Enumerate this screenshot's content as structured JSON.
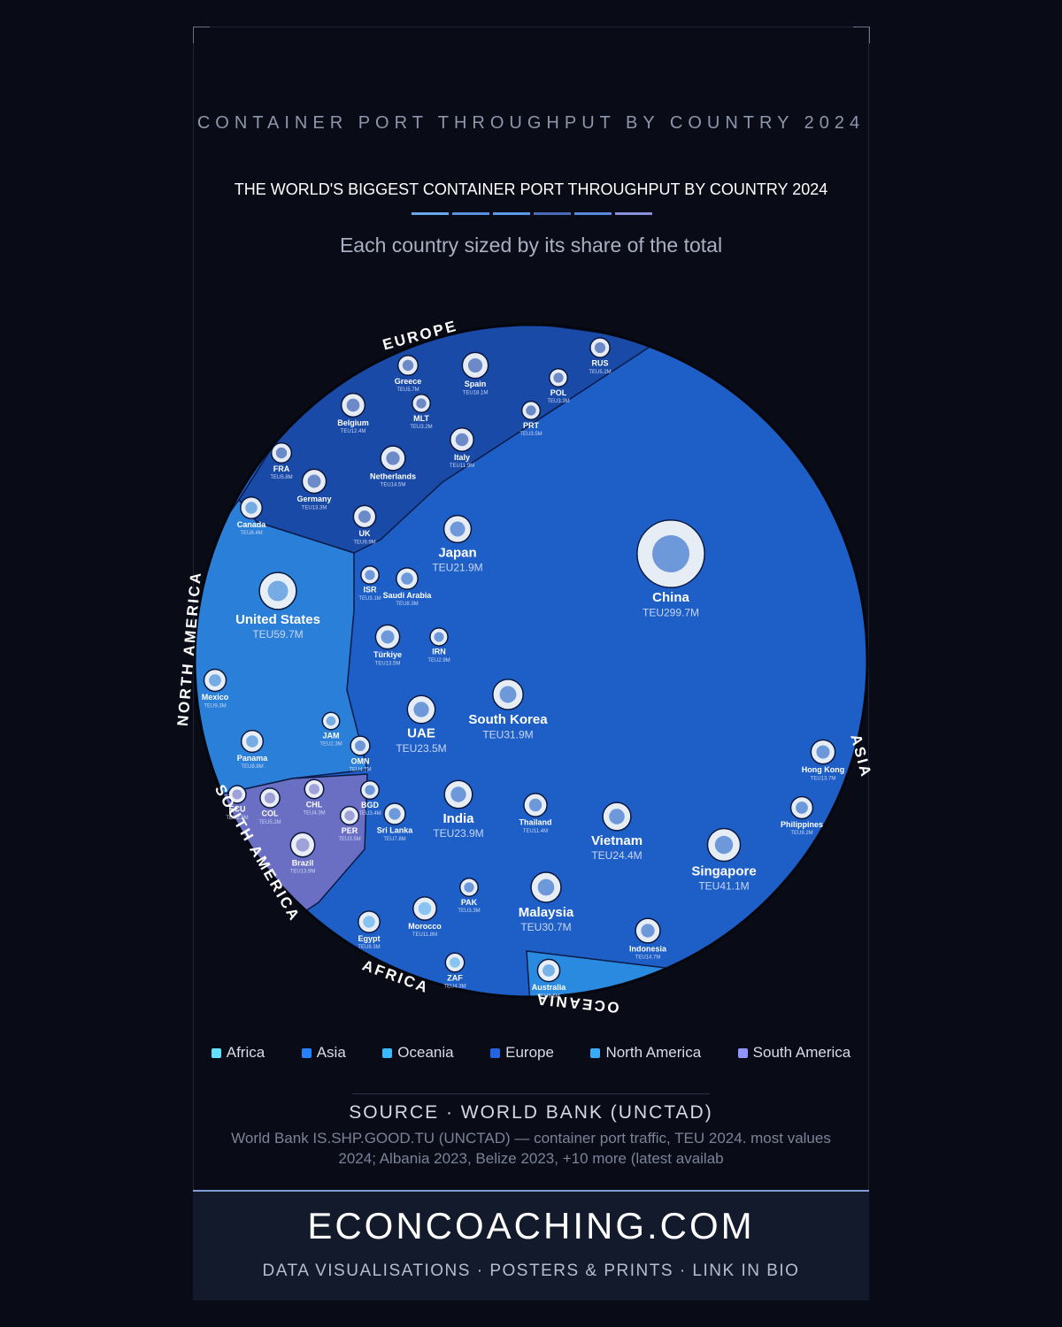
{
  "chart_data": {
    "type": "voronoi-treemap",
    "kicker": "CONTAINER PORT THROUGHPUT BY COUNTRY 2024",
    "title": "THE WORLD'S BIGGEST CONTAINER PORT THROUGHPUT BY COUNTRY 2024",
    "subtitle": "Each country sized by its share of the total",
    "series": [
      {
        "name": "Africa",
        "ring_label": "AFRICA",
        "color": "#4aa6ee",
        "categories": [
          "Morocco",
          "Egypt",
          "ZAF"
        ],
        "values": [
          11.8,
          8.3,
          4.3
        ],
        "value_labels": [
          "TEU11.8M",
          "TEU8.3M",
          "TEU4.3M"
        ]
      },
      {
        "name": "Asia",
        "ring_label": "ASIA",
        "color": "#1d5fc7",
        "categories": [
          "China",
          "Singapore",
          "South Korea",
          "Malaysia",
          "Vietnam",
          "India",
          "UAE",
          "Japan",
          "Hong Kong",
          "Indonesia",
          "Thailand",
          "Türkiye",
          "Philippines",
          "Saudi Arabia",
          "Sri Lanka",
          "OMN",
          "ISR",
          "IRN",
          "BGD",
          "PAK"
        ],
        "values": [
          299.7,
          41.1,
          31.9,
          30.7,
          24.4,
          23.9,
          23.5,
          21.9,
          13.7,
          14.7,
          11.4,
          13.5,
          9.2,
          8.3,
          7.8,
          4.7,
          3.1,
          2.9,
          3.4,
          3.3
        ],
        "value_labels": [
          "TEU299.7M",
          "TEU41.1M",
          "TEU31.9M",
          "TEU30.7M",
          "TEU24.4M",
          "TEU23.9M",
          "TEU23.5M",
          "TEU21.9M",
          "TEU13.7M",
          "TEU14.7M",
          "TEU11.4M",
          "TEU13.5M",
          "TEU9.2M",
          "TEU8.3M",
          "TEU7.8M",
          "TEU4.7M",
          "TEU3.1M",
          "TEU2.9M",
          "TEU3.4M",
          "TEU3.3M"
        ]
      },
      {
        "name": "Oceania",
        "ring_label": "OCEANIA",
        "color": "#2a8ae0",
        "categories": [
          "Australia"
        ],
        "values": [
          9.6
        ],
        "value_labels": [
          "TEU9.6M"
        ]
      },
      {
        "name": "Europe",
        "ring_label": "EUROPE",
        "color": "#1a4aa8",
        "categories": [
          "Spain",
          "Netherlands",
          "Germany",
          "Belgium",
          "Italy",
          "UK",
          "Greece",
          "FRA",
          "RUS",
          "MLT",
          "PRT",
          "POL"
        ],
        "values": [
          18.1,
          14.5,
          13.3,
          12.4,
          11.9,
          9.9,
          5.7,
          5.8,
          5.2,
          3.2,
          3.5,
          3.3
        ],
        "value_labels": [
          "TEU18.1M",
          "TEU14.5M",
          "TEU13.3M",
          "TEU12.4M",
          "TEU11.9M",
          "TEU9.9M",
          "TEU5.7M",
          "TEU5.8M",
          "TEU5.2M",
          "TEU3.2M",
          "TEU3.5M",
          "TEU3.3M"
        ]
      },
      {
        "name": "North America",
        "ring_label": "NORTH AMERICA",
        "color": "#2a7fd8",
        "categories": [
          "United States",
          "Mexico",
          "Canada",
          "Panama",
          "JAM"
        ],
        "values": [
          59.7,
          9.3,
          8.4,
          8.8,
          2.3
        ],
        "value_labels": [
          "TEU59.7M",
          "TEU9.3M",
          "TEU8.4M",
          "TEU8.8M",
          "TEU2.3M"
        ]
      },
      {
        "name": "South America",
        "ring_label": "SOUTH AMERICA",
        "color": "#6a6fc4",
        "categories": [
          "Brazil",
          "COL",
          "CHL",
          "PER",
          "ECU"
        ],
        "values": [
          13.9,
          5.2,
          4.3,
          3.5,
          2.8
        ],
        "value_labels": [
          "TEU13.9M",
          "TEU5.2M",
          "TEU4.3M",
          "TEU3.5M",
          "TEU2.8M"
        ]
      }
    ],
    "source_title": "SOURCE · WORLD BANK (UNCTAD)",
    "source_note": "World Bank IS.SHP.GOOD.TU (UNCTAD) — container port traffic, TEU 2024. most values 2024; Albania 2023, Belize 2023, +10 more (latest availab",
    "brand": "ECONCOACHING.COM",
    "tagline": "DATA VISUALISATIONS · POSTERS & PRINTS · LINK IN BIO"
  }
}
